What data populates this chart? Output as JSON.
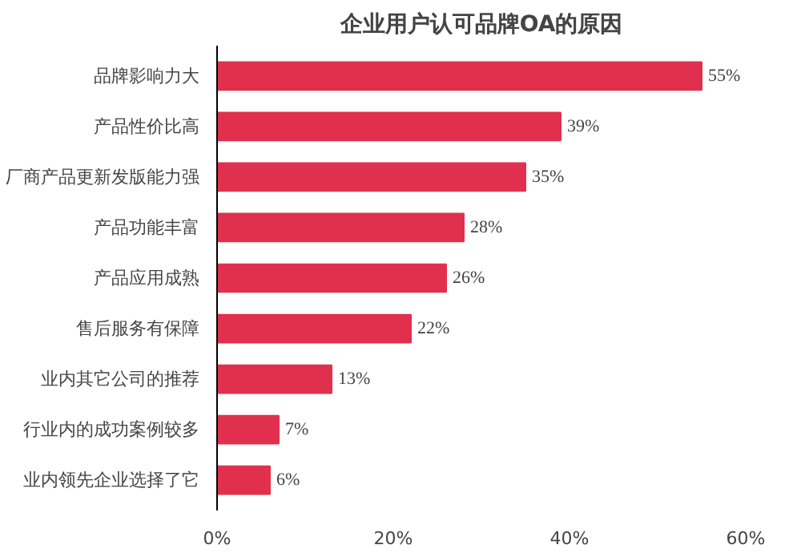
{
  "chart_data": {
    "type": "bar",
    "orientation": "horizontal",
    "title": "企业用户认可品牌OA的原因",
    "categories": [
      "品牌影响力大",
      "产品性价比高",
      "厂商产品更新发版能力强",
      "产品功能丰富",
      "产品应用成熟",
      "售后服务有保障",
      "业内其它公司的推荐",
      "行业内的成功案例较多",
      "业内领先企业选择了它"
    ],
    "values": [
      55,
      39,
      35,
      28,
      26,
      22,
      13,
      7,
      6
    ],
    "value_labels": [
      "55%",
      "39%",
      "35%",
      "28%",
      "26%",
      "22%",
      "13%",
      "7%",
      "6%"
    ],
    "color": "#e0304e",
    "xlim": [
      0,
      60
    ],
    "xticks": [
      {
        "value": 0,
        "label": "0%"
      },
      {
        "value": 20,
        "label": "20%"
      },
      {
        "value": 40,
        "label": "40%"
      },
      {
        "value": 60,
        "label": "60%"
      }
    ],
    "grid": false
  }
}
